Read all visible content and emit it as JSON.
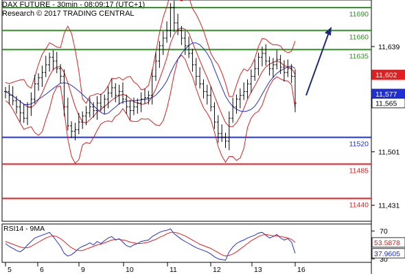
{
  "header": {
    "title": "DAX FUTURE - 30min - 08:09:17 (UTC+1)",
    "copyright": "Research © 2017 TRADING CENTRAL"
  },
  "chart_data": [
    {
      "type": "candlestick",
      "y_axis_ticks": [
        11639,
        11501,
        11431
      ],
      "ylim": [
        11410,
        11700
      ],
      "levels": [
        {
          "label": "11690",
          "value": 11690,
          "color": "#2e8b22"
        },
        {
          "label": "11660",
          "value": 11660,
          "color": "#2e8b22"
        },
        {
          "label": "11635",
          "value": 11635,
          "color": "#2e8b22"
        },
        {
          "label": "11520",
          "value": 11520,
          "color": "#1f2fd0"
        },
        {
          "label": "11485",
          "value": 11485,
          "color": "#e02020"
        },
        {
          "label": "11440",
          "value": 11440,
          "color": "#e02020"
        }
      ],
      "price_badges": [
        {
          "label": "11,602",
          "value": 11602,
          "bg": "#e02020",
          "fg": "#ffffff"
        },
        {
          "label": "11,577",
          "value": 11577,
          "bg": "#1f2fd0",
          "fg": "#ffffff"
        },
        {
          "label": "11,565",
          "value": 11565,
          "bg": "#ffffff",
          "fg": "#000000"
        }
      ],
      "close_series": [
        11580,
        11575,
        11568,
        11560,
        11552,
        11545,
        11560,
        11570,
        11590,
        11598,
        11605,
        11615,
        11625,
        11620,
        11610,
        11600,
        11560,
        11535,
        11528,
        11530,
        11540,
        11548,
        11552,
        11560,
        11555,
        11565,
        11560,
        11570,
        11578,
        11585,
        11575,
        11580,
        11570,
        11560,
        11555,
        11560,
        11565,
        11570,
        11572,
        11575,
        11600,
        11620,
        11640,
        11650,
        11660,
        11690,
        11670,
        11660,
        11650,
        11640,
        11630,
        11615,
        11600,
        11590,
        11580,
        11575,
        11560,
        11540,
        11525,
        11520,
        11515,
        11545,
        11560,
        11570,
        11575,
        11580,
        11590,
        11600,
        11610,
        11625,
        11630,
        11620,
        11610,
        11615,
        11622,
        11612,
        11605,
        11610,
        11600,
        11565
      ],
      "bollinger_ma": "red",
      "moving_average": "blue",
      "forecast_arrow": {
        "from": 11575,
        "to": 11665,
        "color": "#1f2a7a"
      }
    },
    {
      "type": "line",
      "title": "RSI14 - 9MA",
      "y_axis_ticks": [
        70,
        30
      ],
      "ylim": [
        25,
        80
      ],
      "series": [
        {
          "color": "#1f2fd0",
          "values": [
            52,
            48,
            45,
            42,
            40,
            44,
            50,
            55,
            60,
            62,
            64,
            66,
            68,
            62,
            55,
            48,
            38,
            34,
            36,
            40,
            45,
            48,
            50,
            53,
            50,
            55,
            52,
            56,
            60,
            62,
            57,
            59,
            54,
            49,
            47,
            50,
            52,
            55,
            56,
            57,
            62,
            65,
            68,
            70,
            71,
            73,
            66,
            62,
            58,
            55,
            52,
            49,
            46,
            44,
            42,
            40,
            37,
            33,
            30,
            29,
            28,
            40,
            47,
            52,
            55,
            57,
            60,
            62,
            64,
            67,
            68,
            64,
            60,
            62,
            65,
            60,
            57,
            59,
            54,
            37.96
          ]
        },
        {
          "color": "#e02020",
          "values": [
            55,
            53,
            51,
            49,
            47,
            46,
            46,
            48,
            51,
            54,
            57,
            60,
            62,
            63,
            62,
            59,
            55,
            50,
            46,
            43,
            42,
            42,
            44,
            46,
            48,
            50,
            51,
            53,
            55,
            57,
            58,
            58,
            57,
            56,
            54,
            53,
            52,
            52,
            53,
            54,
            56,
            58,
            61,
            63,
            66,
            68,
            68,
            67,
            65,
            63,
            60,
            57,
            54,
            51,
            49,
            47,
            45,
            42,
            39,
            36,
            34,
            35,
            37,
            40,
            44,
            48,
            52,
            56,
            59,
            62,
            64,
            65,
            64,
            63,
            63,
            62,
            61,
            60,
            58,
            53.59
          ]
        }
      ],
      "badges": [
        {
          "label": "53.5878",
          "value": 53.5878,
          "bg": "#ffffff",
          "fg": "#e02020"
        },
        {
          "label": "37.9605",
          "value": 37.9605,
          "bg": "#ffffff",
          "fg": "#1f2fd0"
        }
      ]
    }
  ],
  "x_axis": {
    "ticks": [
      "5",
      "6",
      "9",
      "10",
      "11",
      "12",
      "13",
      "16"
    ]
  }
}
